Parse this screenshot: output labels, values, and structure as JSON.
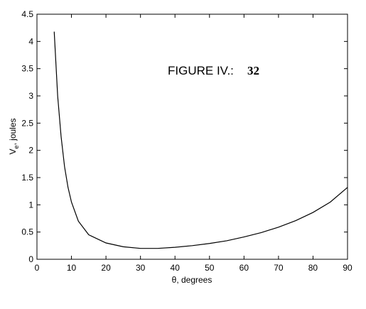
{
  "chart_data": {
    "type": "line",
    "annotations": [
      "FIGURE IV.:",
      "32"
    ],
    "xlabel": "θ,  degrees",
    "ylabel_parts": [
      "V",
      "e",
      ", joules"
    ],
    "x": [
      5,
      6,
      7,
      8,
      9,
      10,
      12,
      15,
      20,
      25,
      30,
      35,
      40,
      45,
      50,
      55,
      60,
      65,
      70,
      75,
      80,
      85,
      90
    ],
    "series": [
      {
        "color": "#000000",
        "values": [
          4.18,
          3.0,
          2.25,
          1.7,
          1.32,
          1.05,
          0.7,
          0.45,
          0.3,
          0.23,
          0.2,
          0.2,
          0.22,
          0.25,
          0.29,
          0.34,
          0.41,
          0.49,
          0.59,
          0.71,
          0.86,
          1.05,
          1.32
        ]
      }
    ],
    "xlim": [
      0,
      90
    ],
    "ylim": [
      0,
      4.5
    ],
    "xticks": [
      0,
      10,
      20,
      30,
      40,
      50,
      60,
      70,
      80,
      90
    ],
    "yticks": [
      0,
      0.5,
      1,
      1.5,
      2,
      2.5,
      3,
      3.5,
      4,
      4.5
    ],
    "grid": false
  }
}
